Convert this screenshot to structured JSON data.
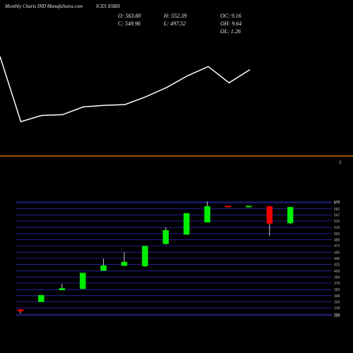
{
  "header": {
    "site": "Monthly Charts IND MunafaSutra.com",
    "symbol": "ICES XSBH",
    "open": "O: 563.80",
    "close": "C: 549.96",
    "high": "H: 552.39",
    "low": "L: 497.52",
    "oc": "OC: 9.16",
    "oh": "OH: 9.64",
    "ol": "OL: 1.26"
  },
  "colors": {
    "background": "#000000",
    "line": "#ffffff",
    "divider": "#c96f10",
    "grid": "#2c2cb8",
    "up": "#00ee00",
    "down": "#ee0000",
    "tick_text": "#bbbbbb"
  },
  "chart_data": [
    {
      "type": "line",
      "title": "",
      "series": [
        {
          "values": [
            566,
            482,
            490,
            491,
            501,
            503,
            504,
            514,
            526,
            541,
            553,
            532,
            549
          ]
        }
      ]
    },
    {
      "type": "candlestick",
      "divider_label": "3",
      "ylim": [
        299,
        579
      ],
      "yticks": [
        299,
        302,
        318,
        333,
        348,
        363,
        379,
        394,
        409,
        425,
        440,
        455,
        471,
        486,
        501,
        516,
        532,
        547,
        562,
        577,
        579
      ],
      "candles": [
        {
          "open": 314,
          "close": 310,
          "high": 314,
          "low": 304
        },
        {
          "open": 333,
          "close": 349,
          "high": 350,
          "low": 333
        },
        {
          "open": 362,
          "close": 366,
          "high": 377,
          "low": 362
        },
        {
          "open": 365,
          "close": 404,
          "high": 404,
          "low": 365
        },
        {
          "open": 410,
          "close": 422,
          "high": 439,
          "low": 410
        },
        {
          "open": 422,
          "close": 431,
          "high": 455,
          "low": 422
        },
        {
          "open": 421,
          "close": 470,
          "high": 471,
          "low": 419
        },
        {
          "open": 476,
          "close": 509,
          "high": 516,
          "low": 474
        },
        {
          "open": 499,
          "close": 551,
          "high": 551,
          "low": 498
        },
        {
          "open": 529,
          "close": 568,
          "high": 580,
          "low": 529
        },
        {
          "open": 569,
          "close": 568,
          "high": 569,
          "low": 568
        },
        {
          "open": 568,
          "close": 569,
          "high": 569,
          "low": 568
        },
        {
          "open": 568,
          "close": 526,
          "high": 569,
          "low": 495
        },
        {
          "open": 527,
          "close": 566,
          "high": 567,
          "low": 524
        }
      ]
    }
  ]
}
